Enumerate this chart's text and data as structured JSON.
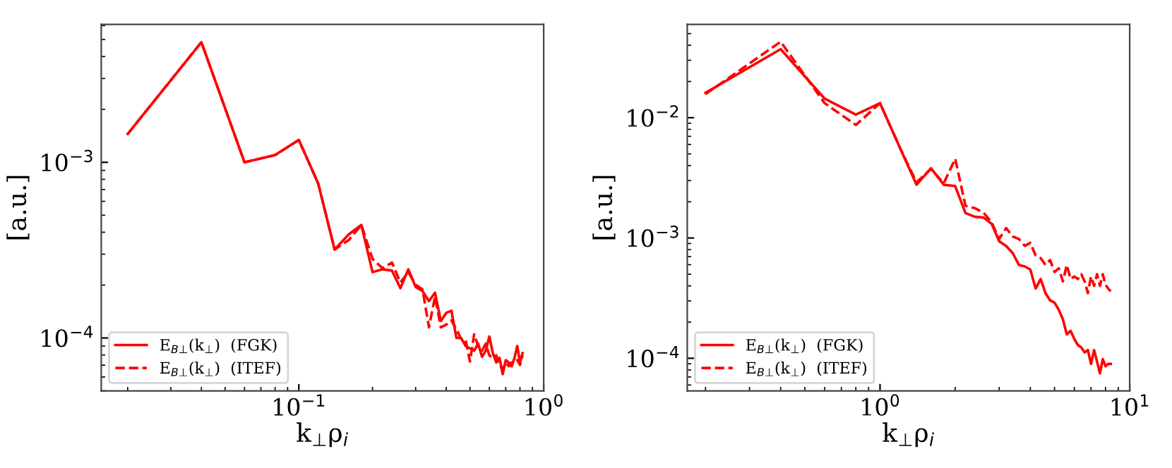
{
  "chart_data": [
    {
      "type": "line",
      "xlabel": "k$_{⊥}$ρ$_{i}$",
      "ylabel": "[a.u.]",
      "log": "xy",
      "grid": false,
      "legend": "bottom left",
      "x": [
        0.02,
        0.04,
        0.06,
        0.08,
        0.1,
        0.12,
        0.14,
        0.16,
        0.18,
        0.2,
        0.22,
        0.24,
        0.26,
        0.28,
        0.3,
        0.32,
        0.34,
        0.36,
        0.38,
        0.4,
        0.42,
        0.44,
        0.46,
        0.48,
        0.5,
        0.52,
        0.54,
        0.56,
        0.58,
        0.6,
        0.62,
        0.64,
        0.66,
        0.68,
        0.7,
        0.72,
        0.74,
        0.76,
        0.78,
        0.8,
        0.82
      ],
      "xlim": [
        0.0156,
        1.0
      ],
      "ylim": [
        5e-05,
        0.0061
      ],
      "xticks": [
        {
          "value": 0.1,
          "label": "10$^{−1}$"
        },
        {
          "value": 1,
          "label": "10$^{0}$"
        }
      ],
      "yticks": [
        {
          "value": 0.0001,
          "label": "10$^{−4}$"
        },
        {
          "value": 0.001,
          "label": "10$^{−3}$"
        }
      ],
      "series": [
        {
          "name": "E$_{B⊥}$(k$_{⊥}$)  (FGK)",
          "color": "#ff0000",
          "line_style": "solid",
          "values": [
            0.00145,
            0.00483,
            0.001,
            0.0011,
            0.00134,
            0.000757,
            0.000319,
            0.000389,
            0.00044,
            0.000237,
            0.000246,
            0.000242,
            0.000192,
            0.000246,
            0.000195,
            0.000185,
            0.000162,
            0.000181,
            0.000125,
            0.000139,
            0.000143,
            0.0001,
            0.0001,
            9e-05,
            8.73e-05,
            8.47e-05,
            9.29e-05,
            7.82e-05,
            8.47e-05,
            0.000102,
            8.2e-05,
            7.26e-05,
            7.71e-05,
            6.22e-05,
            7.48e-05,
            7.26e-05,
            6.9e-05,
            7.71e-05,
            9e-05,
            7.26e-05,
            8.2e-05
          ]
        },
        {
          "name": "E$_{B⊥}$(k$_{⊥}$)  (ITEF)",
          "color": "#ff0000",
          "line_style": "dashed",
          "values": [
            0.00145,
            0.00483,
            0.001,
            0.0011,
            0.00134,
            0.000757,
            0.000319,
            0.000361,
            0.00044,
            0.000282,
            0.000249,
            0.000269,
            0.000207,
            0.000237,
            0.000201,
            0.000189,
            0.000115,
            0.000172,
            0.000115,
            0.000119,
            0.000126,
            0.000112,
            9.9e-05,
            9.75e-05,
            7.34e-05,
            0.000105,
            9e-05,
            8.47e-05,
            9.29e-05,
            7.96e-05,
            7.71e-05,
            7.96e-05,
            7.03e-05,
            6.61e-05,
            7.26e-05,
            6.9e-05,
            7.26e-05,
            7.26e-05,
            7.48e-05,
            7.03e-05,
            7.96e-05
          ]
        }
      ]
    },
    {
      "type": "line",
      "xlabel": "k$_{⊥}$ρ$_{i}$",
      "ylabel": "[a.u.]",
      "log": "xy",
      "grid": false,
      "legend": "bottom left",
      "x": [
        0.2,
        0.4,
        0.6,
        0.8,
        1.0,
        1.2,
        1.4,
        1.6,
        1.8,
        2.0,
        2.2,
        2.4,
        2.6,
        2.8,
        3.0,
        3.2,
        3.4,
        3.6,
        3.8,
        4.0,
        4.2,
        4.4,
        4.6,
        4.8,
        5.0,
        5.2,
        5.4,
        5.6,
        5.8,
        6.0,
        6.2,
        6.4,
        6.6,
        6.8,
        7.0,
        7.2,
        7.4,
        7.6,
        7.8,
        8.0,
        8.2,
        8.4
      ],
      "xlim": [
        0.169,
        10
      ],
      "ylim": [
        5.36e-05,
        0.0597
      ],
      "xticks": [
        {
          "value": 1,
          "label": "10$^{0}$"
        },
        {
          "value": 10,
          "label": "10$^{1}$"
        }
      ],
      "yticks": [
        {
          "value": 0.0001,
          "label": "10$^{−4}$"
        },
        {
          "value": 0.001,
          "label": "10$^{−3}$"
        },
        {
          "value": 0.01,
          "label": "10$^{−2}$"
        }
      ],
      "series": [
        {
          "name": "E$_{B⊥}$(k$_{⊥}$)  (FGK)",
          "color": "#ff0000",
          "line_style": "solid",
          "values": [
            0.0161,
            0.0371,
            0.0144,
            0.0106,
            0.0132,
            0.00566,
            0.00277,
            0.0038,
            0.00277,
            0.0027,
            0.00161,
            0.0015,
            0.00148,
            0.00131,
            0.00094,
            0.000858,
            0.00075,
            0.000597,
            0.00058,
            0.000546,
            0.00038,
            0.000456,
            0.000348,
            0.000303,
            0.00029,
            0.000253,
            0.000211,
            0.000158,
            0.000169,
            0.000145,
            0.000129,
            0.000123,
            0.000112,
            0.000117,
            8.97e-05,
            0.000117,
            9.4e-05,
            7.5e-05,
            9.85e-05,
            8.58e-05,
            8.97e-05,
            8.97e-05
          ]
        },
        {
          "name": "E$_{B⊥}$(k$_{⊥}$)  (ITEF)",
          "color": "#ff0000",
          "line_style": "dashed",
          "values": [
            0.0157,
            0.0428,
            0.0132,
            0.0087,
            0.0132,
            0.00566,
            0.0029,
            0.00375,
            0.00285,
            0.00456,
            0.00185,
            0.00177,
            0.00162,
            0.00135,
            0.00098,
            0.00121,
            0.00103,
            0.00098,
            0.00086,
            0.00091,
            0.000716,
            0.00068,
            0.000597,
            0.000655,
            0.000522,
            0.00056,
            0.000436,
            0.000597,
            0.000456,
            0.000479,
            0.000456,
            0.0005,
            0.000436,
            0.000348,
            0.000479,
            0.0004,
            0.0005,
            0.0004,
            0.0005,
            0.00041,
            0.00038,
            0.00036
          ]
        }
      ]
    }
  ]
}
